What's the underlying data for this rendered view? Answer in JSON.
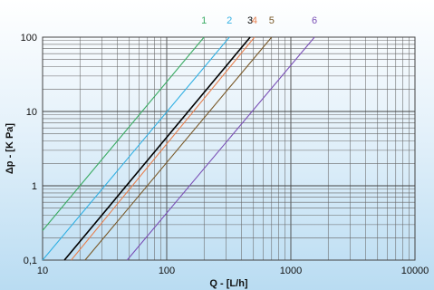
{
  "chart_data": {
    "type": "line",
    "xscale": "log",
    "yscale": "log",
    "xlim": [
      10,
      10000
    ],
    "ylim": [
      0.1,
      100
    ],
    "xlabel": "Q - [L/h]",
    "ylabel": "Δp - [K Pa]",
    "x_tick_labels": [
      "10",
      "100",
      "1000",
      "10000"
    ],
    "y_tick_labels": [
      "0,1",
      "1",
      "10",
      "100"
    ],
    "grid": true,
    "legend": "numbers above plot area",
    "series": [
      {
        "name": "1",
        "color": "#3aab63",
        "x": [
          10,
          200
        ],
        "y": [
          0.25,
          100
        ]
      },
      {
        "name": "2",
        "color": "#31b0e3",
        "x": [
          10,
          320
        ],
        "y": [
          0.1,
          100
        ]
      },
      {
        "name": "3",
        "color": "#000000",
        "x": [
          15,
          470
        ],
        "y": [
          0.1,
          100
        ]
      },
      {
        "name": "4",
        "color": "#e7804f",
        "x": [
          17,
          510
        ],
        "y": [
          0.1,
          100
        ]
      },
      {
        "name": "5",
        "color": "#7a5a2a",
        "x": [
          22,
          700
        ],
        "y": [
          0.1,
          100
        ]
      },
      {
        "name": "6",
        "color": "#7a4fb6",
        "x": [
          48,
          1550
        ],
        "y": [
          0.1,
          100
        ]
      }
    ]
  }
}
